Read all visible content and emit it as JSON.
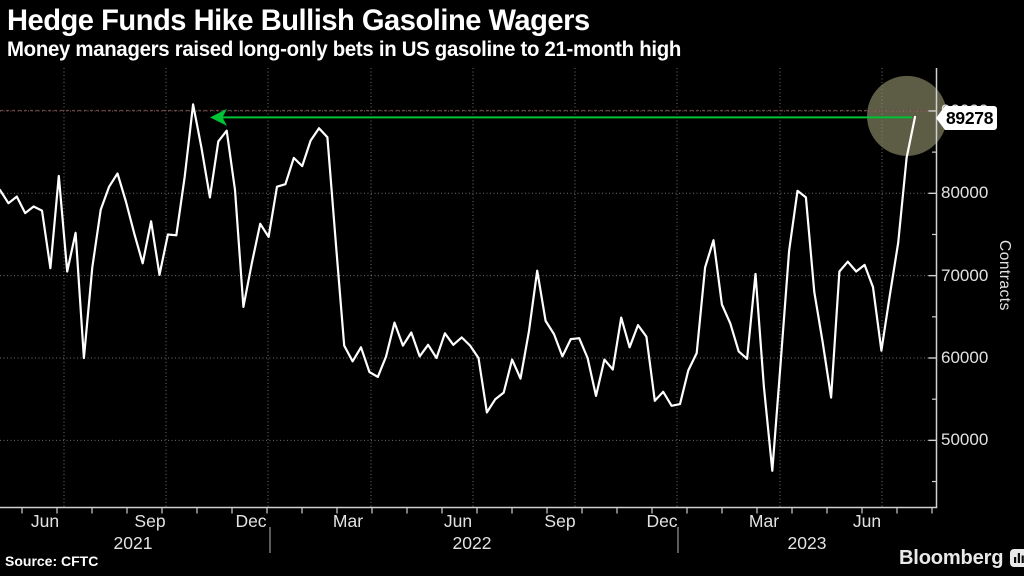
{
  "header": {
    "title": "Hedge Funds Hike Bullish Gasoline Wagers",
    "subtitle": "Money managers raised long-only bets in US gasoline to 21-month high"
  },
  "footer": {
    "source": "Source: CFTC",
    "brand": "Bloomberg"
  },
  "chart_data": {
    "type": "line",
    "title": "Hedge Funds Hike Bullish Gasoline Wagers",
    "subtitle": "Money managers raised long-only bets in US gasoline to 21-month high",
    "ylabel": "Contracts",
    "xlabel": "",
    "frequency": "weekly",
    "x_range_note": "Jun 2021 through Jul 2023, weekly observations",
    "x_tick_labels": [
      "Jun",
      "Sep",
      "Dec",
      "Mar",
      "Jun",
      "Sep",
      "Dec",
      "Mar",
      "Jun"
    ],
    "year_labels": [
      "2021",
      "2022",
      "2023"
    ],
    "y_ticks": [
      90000,
      80000,
      70000,
      60000,
      50000
    ],
    "y_minor_ticks": [
      85000,
      75000,
      65000,
      55000,
      45000
    ],
    "ylim": [
      41800,
      95300
    ],
    "grid": true,
    "legend": "none",
    "last_value": 89278,
    "last_value_label": "89278",
    "annotation": {
      "arrow_note": "green arrow from latest point back to the Oct 2021 peak level (21-month high)",
      "highlight": "olive circle highlighting the latest data point"
    },
    "colors": {
      "background": "#000000",
      "line": "#ffffff",
      "arrow_green": "#00c235",
      "high_line_red": "#7e4646",
      "grid": "#8a8a8a",
      "axis": "#d0d0d0",
      "highlight_circle": "rgba(170,170,125,0.55)",
      "tag_bg": "#ffffff",
      "tag_text": "#000000"
    },
    "values": [
      80400,
      78800,
      79600,
      77600,
      78400,
      77900,
      70900,
      82100,
      70500,
      75200,
      60000,
      71000,
      78000,
      80800,
      82400,
      79000,
      75100,
      71500,
      76600,
      70100,
      75000,
      74900,
      82000,
      90800,
      85500,
      79500,
      86300,
      87600,
      80400,
      66200,
      71500,
      76300,
      74700,
      80800,
      81100,
      84300,
      83300,
      86400,
      87900,
      86800,
      74000,
      61500,
      59600,
      61300,
      58300,
      57700,
      60200,
      64300,
      61500,
      63100,
      60200,
      61600,
      60000,
      63000,
      61600,
      62500,
      61500,
      60000,
      53400,
      55000,
      55800,
      59800,
      57500,
      63200,
      70600,
      64500,
      62900,
      60200,
      62300,
      62400,
      60000,
      55400,
      59800,
      58600,
      64900,
      61300,
      64000,
      62600,
      54800,
      55900,
      54200,
      54400,
      58500,
      60600,
      71000,
      74300,
      66500,
      64200,
      60800,
      59900,
      70200,
      56500,
      46300,
      59500,
      73000,
      80300,
      79500,
      68000,
      61900,
      55200,
      70500,
      71700,
      70500,
      71300,
      68600,
      60900,
      67600,
      74000,
      84300,
      89278
    ]
  }
}
